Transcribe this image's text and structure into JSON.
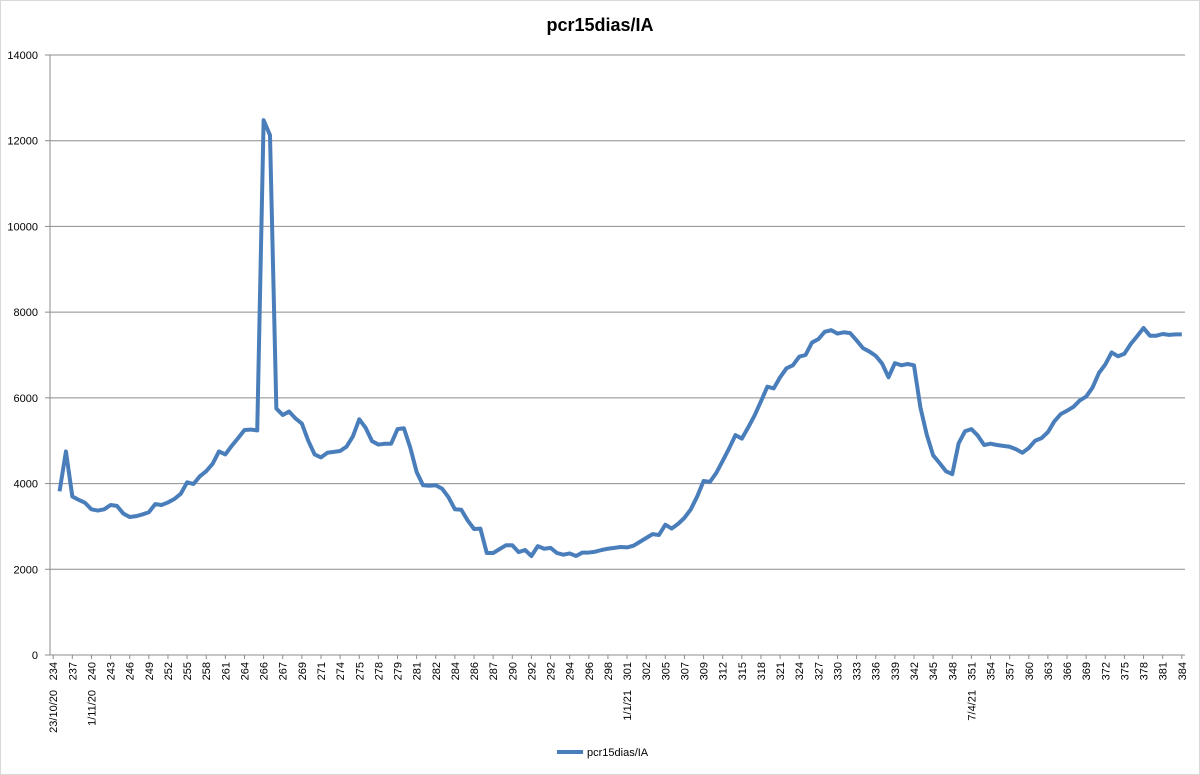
{
  "chart_data": {
    "type": "line",
    "title": "pcr15dias/IA",
    "categories": [
      "234",
      null,
      null,
      "237",
      null,
      null,
      "240",
      null,
      null,
      "243",
      null,
      null,
      "246",
      null,
      null,
      "249",
      null,
      null,
      "252",
      null,
      null,
      "255",
      null,
      null,
      "258",
      null,
      null,
      "261",
      null,
      null,
      "264",
      null,
      null,
      "266",
      null,
      null,
      "267",
      null,
      null,
      "269",
      null,
      null,
      "271",
      null,
      null,
      "274",
      null,
      null,
      "275",
      null,
      null,
      "278",
      null,
      null,
      "279",
      null,
      null,
      "281",
      null,
      null,
      "282",
      null,
      null,
      "284",
      null,
      null,
      "286",
      null,
      null,
      "287",
      null,
      null,
      "290",
      null,
      null,
      "292",
      null,
      null,
      "292",
      null,
      null,
      "294",
      null,
      null,
      "296",
      null,
      null,
      "298",
      null,
      null,
      "301",
      null,
      null,
      "302",
      null,
      null,
      "305",
      null,
      null,
      "307",
      null,
      null,
      "309",
      null,
      null,
      "312",
      null,
      null,
      "315",
      null,
      null,
      "318",
      null,
      null,
      "321",
      null,
      null,
      "324",
      null,
      null,
      "327",
      null,
      null,
      "330",
      null,
      null,
      "333",
      null,
      null,
      "336",
      null,
      null,
      "339",
      null,
      null,
      "342",
      null,
      null,
      "345",
      null,
      null,
      "348",
      null,
      null,
      "351",
      null,
      null,
      "354",
      null,
      null,
      "357",
      null,
      null,
      "360",
      null,
      null,
      "363",
      null,
      null,
      "366",
      null,
      null,
      "369",
      null,
      null,
      "372",
      null,
      null,
      "375",
      null,
      null,
      "378",
      null,
      null,
      "381",
      null,
      null,
      "384"
    ],
    "date_labels": [
      "23/10/20",
      null,
      null,
      null,
      null,
      null,
      "1/11/20",
      null,
      null,
      null,
      null,
      null,
      null,
      null,
      null,
      null,
      null,
      null,
      null,
      null,
      null,
      null,
      null,
      null,
      null,
      null,
      null,
      null,
      null,
      null,
      null,
      null,
      null,
      null,
      null,
      null,
      null,
      null,
      null,
      null,
      null,
      null,
      null,
      null,
      null,
      null,
      null,
      null,
      null,
      null,
      null,
      null,
      null,
      null,
      null,
      null,
      null,
      null,
      null,
      null,
      null,
      null,
      null,
      null,
      null,
      null,
      null,
      null,
      null,
      null,
      null,
      null,
      null,
      null,
      null,
      null,
      null,
      null,
      null,
      null,
      null,
      null,
      null,
      null,
      null,
      null,
      null,
      null,
      null,
      null,
      "1/1/21",
      null,
      null,
      null,
      null,
      null,
      null,
      null,
      null,
      null,
      null,
      null,
      null,
      null,
      null,
      null,
      null,
      null,
      null,
      null,
      null,
      null,
      null,
      null,
      null,
      null,
      null,
      null,
      null,
      null,
      null,
      null,
      null,
      null,
      null,
      null,
      null,
      null,
      null,
      null,
      null,
      null,
      null,
      null,
      null,
      null,
      null,
      null,
      null,
      null,
      null,
      null,
      null,
      null,
      "7/4/21",
      null,
      null,
      null,
      null,
      null,
      null,
      null,
      null,
      null,
      null,
      null,
      null,
      null,
      null,
      null,
      null,
      null,
      null,
      null,
      null,
      null,
      null,
      null,
      null,
      null,
      null,
      null,
      null,
      null,
      null,
      null,
      null,
      null,
      null,
      null,
      null,
      null,
      null
    ],
    "series": [
      {
        "name": "pcr15dias/IA",
        "color": "#4a7ebb",
        "values": [
          null,
          3820,
          4750,
          3700,
          3620,
          3550,
          3400,
          3370,
          3400,
          3500,
          3480,
          3300,
          3220,
          3240,
          3280,
          3330,
          3520,
          3500,
          3560,
          3640,
          3760,
          4030,
          3990,
          4170,
          4290,
          4460,
          4750,
          4680,
          4880,
          5060,
          5250,
          5260,
          5240,
          12480,
          12130,
          5750,
          5600,
          5680,
          5520,
          5400,
          5000,
          4680,
          4610,
          4720,
          4740,
          4760,
          4860,
          5100,
          5500,
          5300,
          4990,
          4910,
          4930,
          4930,
          5270,
          5290,
          4840,
          4270,
          3960,
          3950,
          3960,
          3880,
          3680,
          3400,
          3390,
          3140,
          2940,
          2950,
          2380,
          2380,
          2470,
          2560,
          2560,
          2400,
          2450,
          2310,
          2540,
          2480,
          2500,
          2380,
          2340,
          2370,
          2310,
          2390,
          2390,
          2410,
          2450,
          2480,
          2500,
          2520,
          2510,
          2550,
          2640,
          2730,
          2820,
          2800,
          3040,
          2950,
          3060,
          3200,
          3400,
          3700,
          4060,
          4040,
          4250,
          4530,
          4820,
          5130,
          5050,
          5310,
          5590,
          5920,
          6260,
          6220,
          6480,
          6690,
          6760,
          6960,
          7000,
          7290,
          7370,
          7540,
          7580,
          7500,
          7530,
          7510,
          7340,
          7160,
          7080,
          6980,
          6800,
          6480,
          6810,
          6760,
          6790,
          6760,
          5780,
          5140,
          4660,
          4480,
          4290,
          4220,
          4940,
          5220,
          5270,
          5120,
          4900,
          4930,
          4900,
          4880,
          4860,
          4800,
          4720,
          4830,
          5000,
          5060,
          5200,
          5450,
          5620,
          5700,
          5790,
          5940,
          6030,
          6240,
          6580,
          6780,
          7060,
          6970,
          7030,
          7260,
          7440,
          7630,
          7450,
          7450,
          7490,
          7470,
          7480,
          7480
        ]
      }
    ],
    "ylim": [
      0,
      14000
    ],
    "yticks": [
      0,
      2000,
      4000,
      6000,
      8000,
      10000,
      12000,
      14000
    ],
    "grid": true
  }
}
